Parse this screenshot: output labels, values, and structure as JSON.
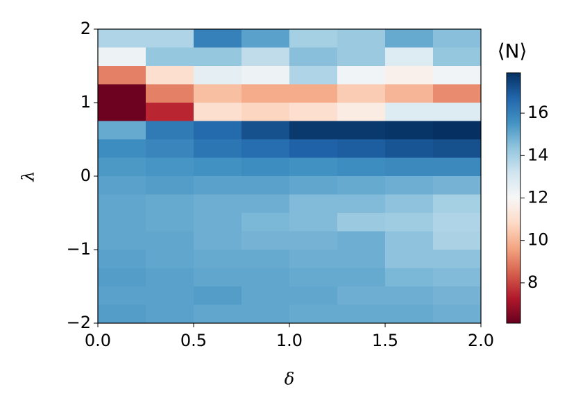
{
  "chart_data": {
    "type": "heatmap",
    "xlabel": "δ",
    "ylabel": "λ",
    "colorbar_label": "⟨N⟩",
    "colormap": "RdBu",
    "xedges": [
      0,
      0.25,
      0.5,
      0.75,
      1,
      1.25,
      1.5,
      1.75,
      2
    ],
    "yedges": [
      2,
      1.75,
      1.5,
      1.25,
      1,
      0.75,
      0.5,
      0.25,
      0,
      -0.25,
      -0.5,
      -0.75,
      -1,
      -1.25,
      -1.5,
      -1.75,
      -2
    ],
    "z": [
      [
        13.8,
        13.8,
        16.0,
        15.2,
        14.0,
        14.2,
        15.0,
        14.5
      ],
      [
        12.3,
        14.3,
        14.3,
        13.5,
        14.5,
        14.2,
        12.8,
        14.3
      ],
      [
        9.0,
        11.0,
        12.6,
        12.3,
        13.8,
        12.2,
        11.7,
        12.2
      ],
      [
        6.2,
        9.0,
        10.2,
        9.8,
        9.8,
        10.5,
        10.0,
        9.2
      ],
      [
        6.2,
        7.5,
        11.0,
        10.7,
        11.0,
        11.5,
        12.8,
        12.8
      ],
      [
        15.0,
        16.2,
        16.6,
        17.2,
        17.7,
        17.7,
        17.8,
        17.9
      ],
      [
        15.7,
        15.9,
        16.3,
        16.5,
        16.8,
        16.9,
        17.1,
        17.2
      ],
      [
        15.4,
        15.5,
        15.6,
        15.7,
        15.6,
        15.7,
        15.8,
        15.8
      ],
      [
        15.2,
        15.3,
        15.2,
        15.2,
        15.1,
        15.0,
        14.9,
        14.8
      ],
      [
        15.1,
        15.0,
        14.9,
        14.9,
        14.6,
        14.6,
        14.4,
        14.0
      ],
      [
        15.1,
        15.0,
        14.9,
        14.7,
        14.6,
        14.2,
        14.1,
        13.8
      ],
      [
        15.1,
        15.1,
        14.9,
        14.8,
        14.8,
        14.9,
        14.4,
        13.9
      ],
      [
        15.2,
        15.1,
        15.0,
        15.0,
        14.9,
        14.9,
        14.4,
        14.4
      ],
      [
        15.3,
        15.2,
        15.1,
        15.1,
        15.0,
        15.0,
        14.7,
        14.6
      ],
      [
        15.2,
        15.2,
        15.3,
        15.1,
        15.1,
        14.9,
        14.9,
        14.8
      ],
      [
        15.3,
        15.2,
        15.1,
        15.1,
        15.0,
        15.0,
        15.0,
        14.9
      ]
    ],
    "xlim": [
      0,
      2
    ],
    "ylim": [
      -2,
      2
    ],
    "clim": [
      6.1,
      17.9
    ],
    "xticks": [
      {
        "value": 0,
        "label": "0.0"
      },
      0.5,
      {
        "value": 1,
        "label": "1.0"
      },
      1.5,
      {
        "value": 2,
        "label": "2.0"
      }
    ],
    "yticks": [
      {
        "value": -2,
        "label": "−2"
      },
      {
        "value": -1,
        "label": "−1"
      },
      0,
      1,
      2
    ],
    "cticks": [
      8,
      10,
      12,
      14,
      16
    ]
  }
}
